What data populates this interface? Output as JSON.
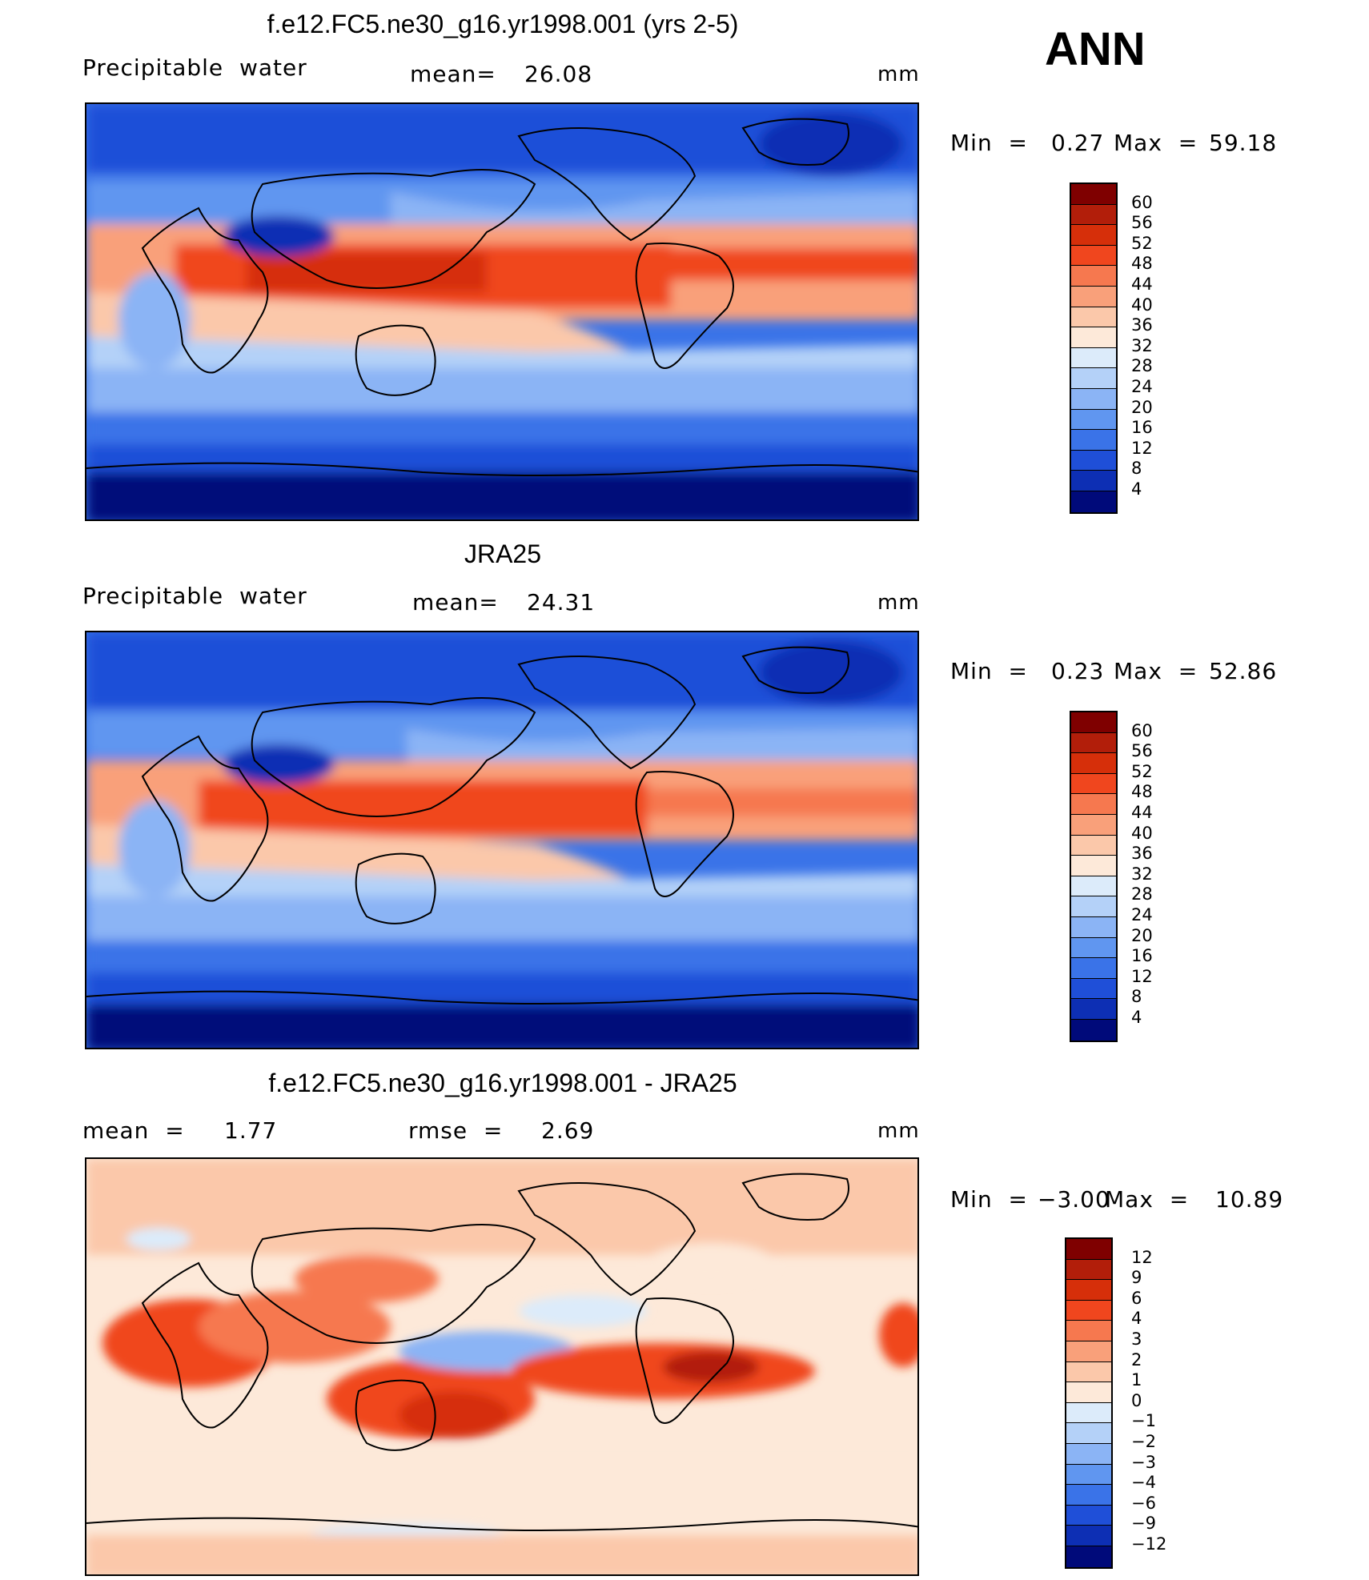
{
  "season": "ANN",
  "panels": [
    {
      "title": "f.e12.FC5.ne30_g16.yr1998.001 (yrs 2-5)",
      "left_label": "Precipitable  water",
      "stat_label": "mean=",
      "stat_value": "26.08",
      "units": "mm",
      "min_label": "Min  =",
      "min_value": "0.27",
      "max_label": "Max  =",
      "max_value": "59.18"
    },
    {
      "title": "JRA25",
      "left_label": "Precipitable  water",
      "stat_label": "mean=",
      "stat_value": "24.31",
      "units": "mm",
      "min_label": "Min  =",
      "min_value": "0.23",
      "max_label": "Max  =",
      "max_value": "52.86"
    },
    {
      "title": "f.e12.FC5.ne30_g16.yr1998.001 - JRA25",
      "mean_label": "mean  =",
      "mean_value": "1.77",
      "rmse_label": "rmse  =",
      "rmse_value": "2.69",
      "units": "mm",
      "min_label": "Min  =",
      "min_value": "−3.00",
      "max_label": "Max  =",
      "max_value": "10.89"
    }
  ],
  "colorbars": {
    "absolute": {
      "labels": [
        "60",
        "56",
        "52",
        "48",
        "44",
        "40",
        "36",
        "32",
        "28",
        "24",
        "20",
        "16",
        "12",
        "8",
        "4"
      ],
      "colors": [
        "#7f0000",
        "#b21e0a",
        "#d62f0a",
        "#f0461e",
        "#f6784f",
        "#f9a07a",
        "#fbc8aa",
        "#fde9d9",
        "#dcebfa",
        "#b4d1f8",
        "#8bb4f5",
        "#6096f0",
        "#3a73e8",
        "#1f4fd8",
        "#0d2fb4",
        "#000a7a"
      ]
    },
    "difference": {
      "labels": [
        "12",
        "9",
        "6",
        "4",
        "3",
        "2",
        "1",
        "0",
        "−1",
        "−2",
        "−3",
        "−4",
        "−6",
        "−9",
        "−12"
      ],
      "colors": [
        "#7f0000",
        "#b21e0a",
        "#d62f0a",
        "#f0461e",
        "#f6784f",
        "#f9a07a",
        "#fbc8aa",
        "#fde9d9",
        "#dcebfa",
        "#b4d1f8",
        "#8bb4f5",
        "#6096f0",
        "#3a73e8",
        "#1f4fd8",
        "#0d2fb4",
        "#000a7a"
      ]
    }
  }
}
